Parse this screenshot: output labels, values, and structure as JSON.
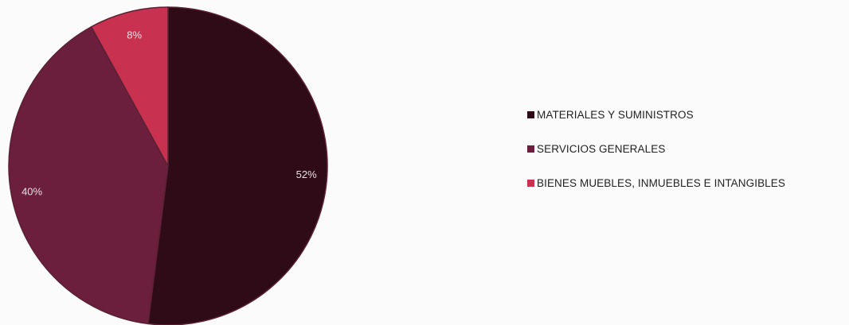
{
  "chart_data": {
    "type": "pie",
    "title": "",
    "slices": [
      {
        "name": "MATERIALES Y SUMINISTROS",
        "value": 52,
        "label": "52%",
        "color": "#2e0b17"
      },
      {
        "name": "SERVICIOS GENERALES",
        "value": 40,
        "label": "40%",
        "color": "#6b1f3c"
      },
      {
        "name": "BIENES MUEBLES, INMUEBLES E INTANGIBLES",
        "value": 8,
        "label": "8%",
        "color": "#c8314f"
      }
    ],
    "legend_position": "right"
  }
}
